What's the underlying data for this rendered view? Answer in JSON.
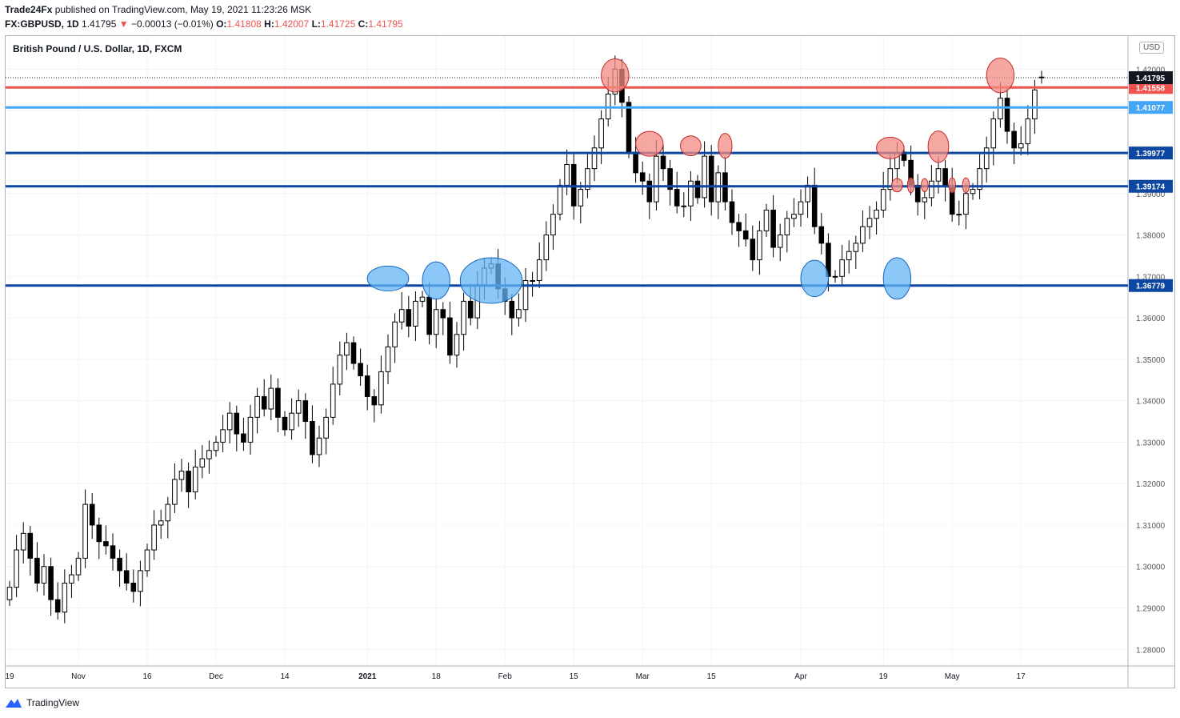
{
  "header": {
    "publisher": "Trade24Fx",
    "published_text": "published on TradingView.com, May 19, 2021 11:23:26 MSK",
    "symbol": "FX:GBPUSD, 1D",
    "last": "1.41795",
    "change_arrow": "▼",
    "change": "−0.00013 (−0.01%)",
    "o_label": "O:",
    "o_val": "1.41808",
    "h_label": "H:",
    "h_val": "1.42007",
    "l_label": "L:",
    "l_val": "1.41725",
    "c_label": "C:",
    "c_val": "1.41795"
  },
  "chart_title": "British Pound / U.S. Dollar, 1D, FXCM",
  "currency_badge": "USD",
  "footer": {
    "brand": "TradingView"
  },
  "colors": {
    "up_fill": "#ffffff",
    "down_fill": "#000000",
    "wick": "#000000",
    "red_level": "#ef5350",
    "light_blue_level": "#42a5f5",
    "dark_blue_level": "#0d47a1",
    "red_marker_fill": "#f28b82",
    "blue_marker_fill": "#64b5f6",
    "grid": "#f0f3fa"
  },
  "chart_data": {
    "type": "candlestick",
    "title": "British Pound / U.S. Dollar, 1D, FXCM",
    "ylim": [
      1.276,
      1.428
    ],
    "y_ticks": [
      1.28,
      1.29,
      1.3,
      1.31,
      1.32,
      1.33,
      1.34,
      1.35,
      1.36,
      1.37,
      1.38,
      1.39,
      1.4,
      1.41,
      1.42
    ],
    "y_tick_labels": [
      "1.28000",
      "1.29000",
      "1.30000",
      "1.31000",
      "1.32000",
      "1.33000",
      "1.34000",
      "1.35000",
      "1.36000",
      "1.37000",
      "1.38000",
      "1.39000",
      "1.40000",
      "1.41000",
      "1.42000"
    ],
    "x_labels": [
      {
        "text": "19",
        "index": 0
      },
      {
        "text": "Nov",
        "index": 10
      },
      {
        "text": "16",
        "index": 20
      },
      {
        "text": "Dec",
        "index": 30
      },
      {
        "text": "14",
        "index": 40
      },
      {
        "text": "2021",
        "index": 52
      },
      {
        "text": "18",
        "index": 62
      },
      {
        "text": "Feb",
        "index": 72
      },
      {
        "text": "15",
        "index": 82
      },
      {
        "text": "Mar",
        "index": 92
      },
      {
        "text": "15",
        "index": 102
      },
      {
        "text": "Apr",
        "index": 115
      },
      {
        "text": "19",
        "index": 127
      },
      {
        "text": "May",
        "index": 137
      },
      {
        "text": "17",
        "index": 147
      }
    ],
    "horizontal_levels": [
      {
        "value": 1.41558,
        "label": "1.41558",
        "color": "#ef5350"
      },
      {
        "value": 1.41077,
        "label": "1.41077",
        "color": "#42a5f5"
      },
      {
        "value": 1.39977,
        "label": "1.39977",
        "color": "#0d47a1"
      },
      {
        "value": 1.39174,
        "label": "1.39174",
        "color": "#0d47a1"
      },
      {
        "value": 1.36779,
        "label": "1.36779",
        "color": "#0d47a1"
      }
    ],
    "last_price": {
      "value": 1.41795,
      "label": "1.41795"
    },
    "closes": [
      1.295,
      1.304,
      1.308,
      1.302,
      1.296,
      1.3,
      1.292,
      1.289,
      1.296,
      1.298,
      1.302,
      1.315,
      1.31,
      1.306,
      1.305,
      1.302,
      1.299,
      1.296,
      1.294,
      1.299,
      1.304,
      1.31,
      1.311,
      1.315,
      1.321,
      1.323,
      1.318,
      1.324,
      1.326,
      1.328,
      1.33,
      1.333,
      1.337,
      1.332,
      1.33,
      1.336,
      1.341,
      1.338,
      1.343,
      1.336,
      1.333,
      1.337,
      1.34,
      1.335,
      1.327,
      1.331,
      1.336,
      1.344,
      1.351,
      1.354,
      1.349,
      1.346,
      1.341,
      1.339,
      1.347,
      1.353,
      1.359,
      1.362,
      1.358,
      1.364,
      1.365,
      1.356,
      1.362,
      1.36,
      1.351,
      1.356,
      1.364,
      1.36,
      1.368,
      1.372,
      1.373,
      1.367,
      1.364,
      1.36,
      1.362,
      1.369,
      1.369,
      1.374,
      1.38,
      1.385,
      1.392,
      1.397,
      1.387,
      1.391,
      1.396,
      1.401,
      1.408,
      1.414,
      1.42,
      1.412,
      1.4,
      1.395,
      1.393,
      1.388,
      1.399,
      1.396,
      1.391,
      1.387,
      1.387,
      1.393,
      1.389,
      1.399,
      1.388,
      1.395,
      1.388,
      1.383,
      1.381,
      1.379,
      1.374,
      1.381,
      1.386,
      1.377,
      1.38,
      1.384,
      1.385,
      1.388,
      1.392,
      1.382,
      1.378,
      1.37,
      1.37,
      1.374,
      1.376,
      1.378,
      1.382,
      1.384,
      1.386,
      1.391,
      1.396,
      1.4,
      1.398,
      1.392,
      1.388,
      1.389,
      1.393,
      1.396,
      1.392,
      1.385,
      1.385,
      1.39,
      1.391,
      1.396,
      1.401,
      1.408,
      1.413,
      1.405,
      1.401,
      1.402,
      1.408,
      1.415,
      1.418
    ],
    "opens": [
      1.292,
      1.295,
      1.304,
      1.308,
      1.302,
      1.296,
      1.3,
      1.292,
      1.289,
      1.296,
      1.298,
      1.302,
      1.315,
      1.31,
      1.306,
      1.305,
      1.302,
      1.299,
      1.296,
      1.294,
      1.299,
      1.304,
      1.31,
      1.311,
      1.315,
      1.321,
      1.323,
      1.318,
      1.324,
      1.326,
      1.328,
      1.33,
      1.333,
      1.337,
      1.332,
      1.33,
      1.336,
      1.341,
      1.338,
      1.343,
      1.336,
      1.333,
      1.337,
      1.34,
      1.335,
      1.327,
      1.331,
      1.336,
      1.344,
      1.351,
      1.354,
      1.349,
      1.346,
      1.341,
      1.339,
      1.347,
      1.353,
      1.359,
      1.362,
      1.358,
      1.364,
      1.365,
      1.356,
      1.362,
      1.36,
      1.351,
      1.356,
      1.364,
      1.36,
      1.368,
      1.372,
      1.373,
      1.367,
      1.364,
      1.36,
      1.362,
      1.369,
      1.369,
      1.374,
      1.38,
      1.385,
      1.392,
      1.397,
      1.387,
      1.391,
      1.396,
      1.401,
      1.408,
      1.414,
      1.42,
      1.412,
      1.4,
      1.395,
      1.393,
      1.388,
      1.399,
      1.396,
      1.391,
      1.387,
      1.387,
      1.393,
      1.389,
      1.399,
      1.388,
      1.395,
      1.388,
      1.383,
      1.381,
      1.379,
      1.374,
      1.381,
      1.386,
      1.377,
      1.38,
      1.384,
      1.385,
      1.388,
      1.392,
      1.382,
      1.378,
      1.37,
      1.37,
      1.374,
      1.376,
      1.378,
      1.382,
      1.384,
      1.386,
      1.391,
      1.396,
      1.4,
      1.398,
      1.392,
      1.388,
      1.389,
      1.393,
      1.396,
      1.392,
      1.385,
      1.385,
      1.39,
      1.391,
      1.396,
      1.401,
      1.408,
      1.413,
      1.405,
      1.401,
      1.402,
      1.408,
      1.4181
    ],
    "wick_pad": 0.003,
    "markers": [
      {
        "color": "red",
        "index": 88,
        "value": 1.4185,
        "rx_bars": 2.0,
        "ry_value": 0.004
      },
      {
        "color": "red",
        "index": 93,
        "value": 1.402,
        "rx_bars": 2.0,
        "ry_value": 0.003
      },
      {
        "color": "red",
        "index": 99,
        "value": 1.4015,
        "rx_bars": 1.5,
        "ry_value": 0.0024
      },
      {
        "color": "red",
        "index": 104,
        "value": 1.4015,
        "rx_bars": 1.0,
        "ry_value": 0.003
      },
      {
        "color": "red",
        "index": 128,
        "value": 1.401,
        "rx_bars": 2.0,
        "ry_value": 0.0026
      },
      {
        "color": "red",
        "index": 129,
        "value": 1.392,
        "rx_bars": 0.8,
        "ry_value": 0.0016
      },
      {
        "color": "red",
        "index": 131,
        "value": 1.392,
        "rx_bars": 0.5,
        "ry_value": 0.0018
      },
      {
        "color": "red",
        "index": 133,
        "value": 1.392,
        "rx_bars": 0.5,
        "ry_value": 0.0016
      },
      {
        "color": "red",
        "index": 135,
        "value": 1.4013,
        "rx_bars": 1.5,
        "ry_value": 0.0038
      },
      {
        "color": "red",
        "index": 137,
        "value": 1.392,
        "rx_bars": 0.5,
        "ry_value": 0.0018
      },
      {
        "color": "red",
        "index": 139,
        "value": 1.392,
        "rx_bars": 0.5,
        "ry_value": 0.0018
      },
      {
        "color": "red",
        "index": 144,
        "value": 1.4185,
        "rx_bars": 2.0,
        "ry_value": 0.0042
      },
      {
        "color": "blue",
        "index": 55,
        "value": 1.3695,
        "rx_bars": 3.0,
        "ry_value": 0.003
      },
      {
        "color": "blue",
        "index": 62,
        "value": 1.369,
        "rx_bars": 2.0,
        "ry_value": 0.0045
      },
      {
        "color": "blue",
        "index": 70,
        "value": 1.369,
        "rx_bars": 4.5,
        "ry_value": 0.0055
      },
      {
        "color": "blue",
        "index": 117,
        "value": 1.3695,
        "rx_bars": 2.0,
        "ry_value": 0.0044
      },
      {
        "color": "blue",
        "index": 129,
        "value": 1.3695,
        "rx_bars": 2.0,
        "ry_value": 0.005
      }
    ]
  }
}
